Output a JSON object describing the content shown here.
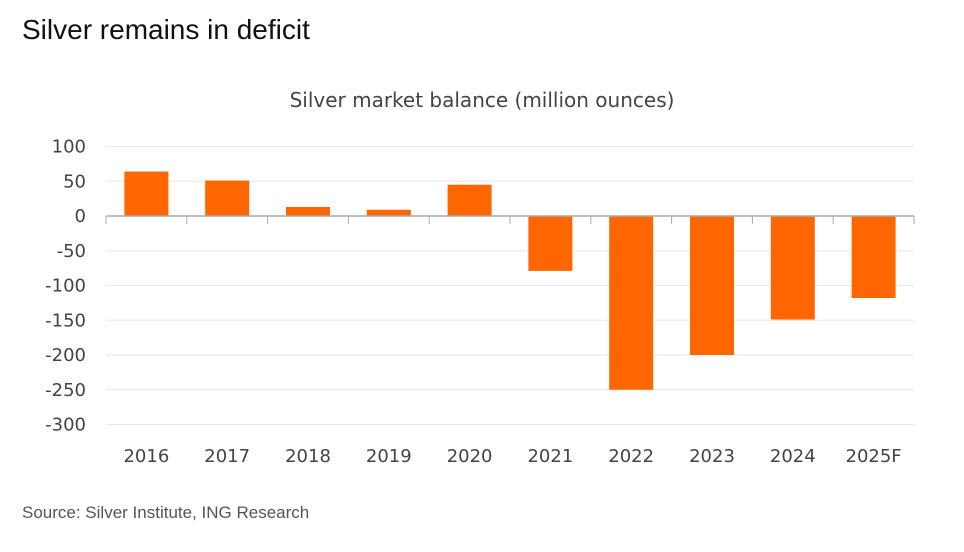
{
  "header": {
    "title": "Silver remains in deficit"
  },
  "footer": {
    "source": "Source: Silver Institute, ING Research"
  },
  "chart_data": {
    "type": "bar",
    "title": "Silver market balance (million ounces)",
    "xlabel": "",
    "ylabel": "",
    "categories": [
      "2016",
      "2017",
      "2018",
      "2019",
      "2020",
      "2021",
      "2022",
      "2023",
      "2024",
      "2025F"
    ],
    "values": [
      64,
      51,
      13,
      9,
      45,
      -79,
      -250,
      -200,
      -149,
      -118
    ],
    "ylim": [
      -300,
      100
    ],
    "yticks": [
      100,
      50,
      0,
      -50,
      -100,
      -150,
      -200,
      -250,
      -300
    ],
    "grid": true,
    "legend": "none",
    "colors": {
      "bar": "#ff6600",
      "grid": "#e6e6e6",
      "axis": "#aaaaaa"
    }
  }
}
